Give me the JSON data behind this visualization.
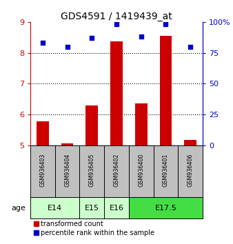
{
  "title": "GDS4591 / 1419439_at",
  "samples": [
    "GSM936403",
    "GSM936404",
    "GSM936405",
    "GSM936402",
    "GSM936400",
    "GSM936401",
    "GSM936406"
  ],
  "transformed_count": [
    5.78,
    5.05,
    6.28,
    8.38,
    6.35,
    8.55,
    5.18
  ],
  "percentile_rank": [
    83,
    80,
    87,
    98,
    88,
    98,
    80
  ],
  "age_groups": [
    {
      "label": "E14",
      "samples": [
        0,
        1
      ],
      "color": "#ccffcc"
    },
    {
      "label": "E15",
      "samples": [
        2
      ],
      "color": "#ccffcc"
    },
    {
      "label": "E16",
      "samples": [
        3
      ],
      "color": "#ccffcc"
    },
    {
      "label": "E17.5",
      "samples": [
        4,
        5,
        6
      ],
      "color": "#44dd44"
    }
  ],
  "ylim_left": [
    5,
    9
  ],
  "yticks_left": [
    5,
    6,
    7,
    8,
    9
  ],
  "ylim_right": [
    0,
    100
  ],
  "yticks_right": [
    0,
    25,
    50,
    75,
    100
  ],
  "ytick_labels_right": [
    "0",
    "25",
    "50",
    "75",
    "100%"
  ],
  "bar_color": "#cc0000",
  "dot_color": "#0000cc",
  "bar_width": 0.5,
  "grid_yticks": [
    6,
    7,
    8
  ],
  "legend_red_label": "transformed count",
  "legend_blue_label": "percentile rank within the sample",
  "ylabel_left_color": "#cc0000",
  "ylabel_right_color": "#0000cc",
  "sample_box_color": "#c0c0c0",
  "dot_size": 18
}
